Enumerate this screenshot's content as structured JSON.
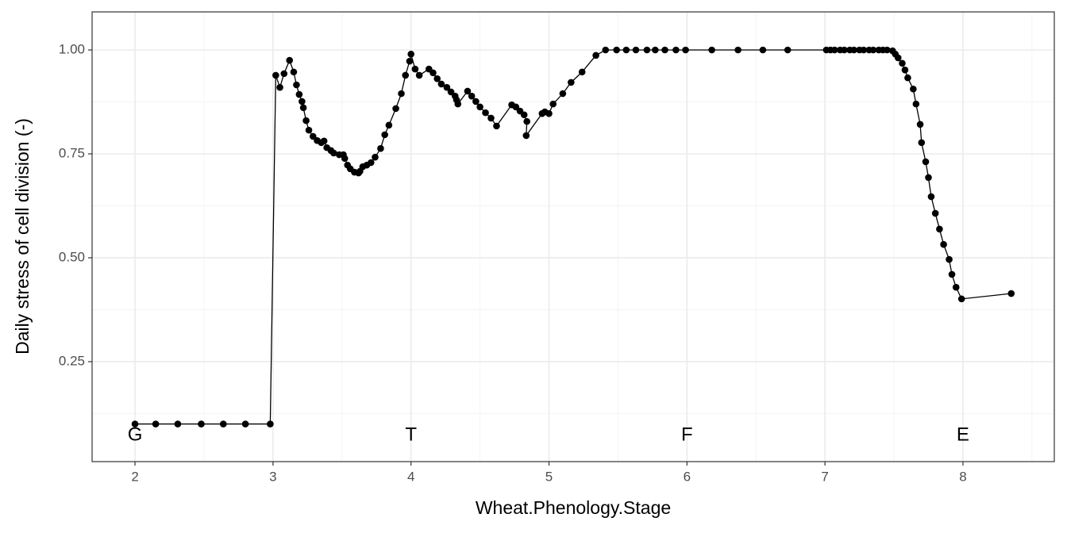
{
  "chart_data": {
    "type": "line",
    "xlabel": "Wheat.Phenology.Stage",
    "ylabel": "Daily stress of cell division (-)",
    "x": [
      2.0,
      2.15,
      2.31,
      2.48,
      2.64,
      2.8,
      2.98,
      3.02,
      3.05,
      3.08,
      3.12,
      3.15,
      3.17,
      3.19,
      3.21,
      3.22,
      3.24,
      3.26,
      3.29,
      3.32,
      3.35,
      3.37,
      3.39,
      3.42,
      3.44,
      3.48,
      3.51,
      3.52,
      3.54,
      3.56,
      3.59,
      3.62,
      3.63,
      3.65,
      3.68,
      3.71,
      3.74,
      3.78,
      3.81,
      3.84,
      3.89,
      3.93,
      3.96,
      3.99,
      4.0,
      4.03,
      4.06,
      4.13,
      4.16,
      4.19,
      4.22,
      4.26,
      4.29,
      4.32,
      4.33,
      4.34,
      4.41,
      4.44,
      4.47,
      4.5,
      4.54,
      4.58,
      4.62,
      4.73,
      4.76,
      4.79,
      4.82,
      4.84,
      4.835,
      4.95,
      4.97,
      5.0,
      5.03,
      5.1,
      5.16,
      5.24,
      5.34,
      5.41,
      5.49,
      5.56,
      5.63,
      5.71,
      5.77,
      5.84,
      5.92,
      5.99,
      6.18,
      6.37,
      6.55,
      6.73,
      7.01,
      7.04,
      7.07,
      7.11,
      7.14,
      7.18,
      7.21,
      7.25,
      7.28,
      7.32,
      7.35,
      7.39,
      7.42,
      7.45,
      7.49,
      7.51,
      7.53,
      7.56,
      7.58,
      7.6,
      7.64,
      7.66,
      7.69,
      7.7,
      7.73,
      7.75,
      7.77,
      7.8,
      7.83,
      7.86,
      7.9,
      7.92,
      7.95,
      7.99,
      8.35
    ],
    "y": [
      0.1,
      0.1,
      0.1,
      0.1,
      0.1,
      0.1,
      0.1,
      0.939,
      0.91,
      0.943,
      0.975,
      0.947,
      0.916,
      0.893,
      0.876,
      0.861,
      0.83,
      0.807,
      0.792,
      0.782,
      0.777,
      0.781,
      0.765,
      0.758,
      0.752,
      0.748,
      0.748,
      0.739,
      0.723,
      0.714,
      0.706,
      0.704,
      0.708,
      0.719,
      0.723,
      0.729,
      0.742,
      0.763,
      0.796,
      0.819,
      0.859,
      0.895,
      0.939,
      0.973,
      0.99,
      0.954,
      0.939,
      0.954,
      0.945,
      0.931,
      0.918,
      0.91,
      0.899,
      0.889,
      0.88,
      0.87,
      0.901,
      0.889,
      0.876,
      0.863,
      0.849,
      0.836,
      0.817,
      0.868,
      0.863,
      0.853,
      0.844,
      0.828,
      0.794,
      0.847,
      0.851,
      0.847,
      0.87,
      0.895,
      0.922,
      0.947,
      0.987,
      1.0,
      1.0,
      1.0,
      1.0,
      1.0,
      1.0,
      1.0,
      1.0,
      1.0,
      1.0,
      1.0,
      1.0,
      1.0,
      1.0,
      1.0,
      1.0,
      1.0,
      1.0,
      1.0,
      1.0,
      1.0,
      1.0,
      1.0,
      1.0,
      1.0,
      1.0,
      1.0,
      0.998,
      0.99,
      0.981,
      0.968,
      0.952,
      0.933,
      0.906,
      0.87,
      0.821,
      0.777,
      0.731,
      0.693,
      0.647,
      0.607,
      0.569,
      0.532,
      0.496,
      0.46,
      0.429,
      0.401,
      0.414
    ],
    "color": "#000000",
    "xlim": [
      1.689,
      8.662
    ],
    "ylim": [
      0.0095,
      1.0916
    ],
    "xticks": [
      2,
      3,
      4,
      5,
      6,
      7,
      8
    ],
    "yticks": [
      0.25,
      {
        "value": 0.5,
        "label": "0.50"
      },
      0.75,
      {
        "value": 1.0,
        "label": "1.00"
      }
    ],
    "xminor": [
      2.5,
      3.5,
      4.5,
      5.5,
      6.5,
      7.5,
      8.5
    ],
    "yminor": [
      0.125,
      0.375,
      0.625,
      0.875
    ],
    "grid": true,
    "annotations": [
      {
        "text": "G",
        "x": 2
      },
      {
        "text": "T",
        "x": 4
      },
      {
        "text": "F",
        "x": 6
      },
      {
        "text": "E",
        "x": 8
      }
    ]
  }
}
